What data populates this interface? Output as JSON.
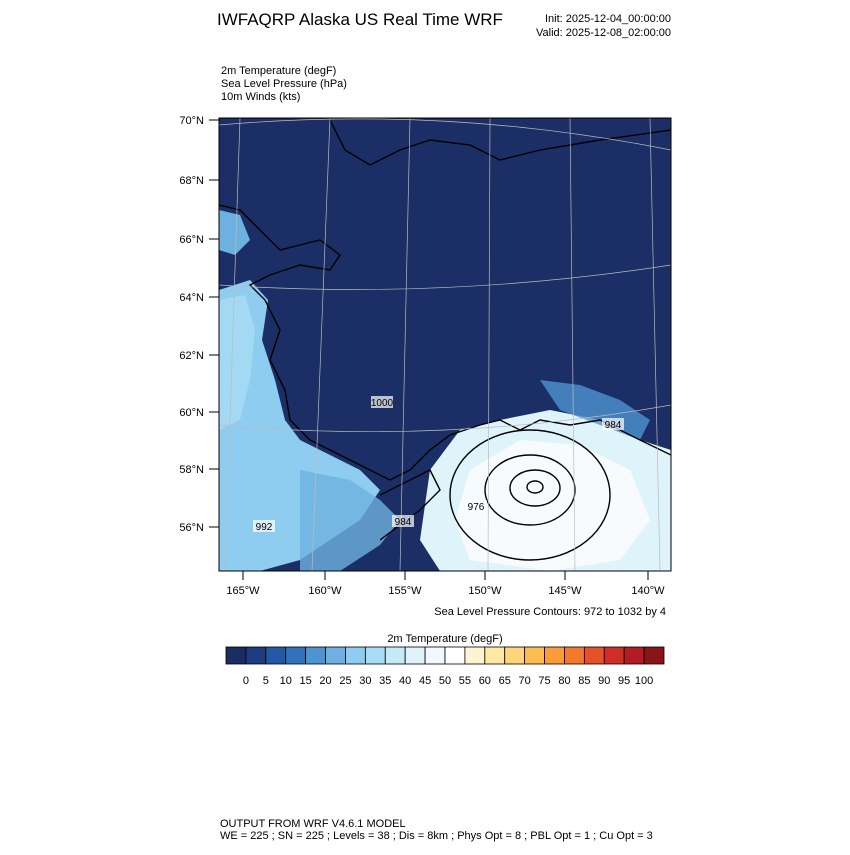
{
  "header": {
    "title": "IWFAQRP Alaska US Real Time WRF",
    "init": "Init: 2025-12-04_00:00:00",
    "valid": "Valid: 2025-12-08_02:00:00"
  },
  "fields": [
    "2m Temperature   (degF)",
    "Sea Level Pressure   (hPa)",
    "10m Winds   (kts)"
  ],
  "map": {
    "lat_labels": [
      "70°N",
      "68°N",
      "66°N",
      "64°N",
      "62°N",
      "60°N",
      "58°N",
      "56°N"
    ],
    "lon_labels": [
      "165°W",
      "160°W",
      "155°W",
      "150°W",
      "145°W",
      "140°W"
    ],
    "contour_labels": [
      "976",
      "984",
      "992",
      "1000",
      "984"
    ],
    "contour_note": "Sea Level Pressure Contours: 972 to 1032 by 4"
  },
  "colorbar": {
    "title": "2m Temperature  (degF)",
    "labels": [
      "0",
      "5",
      "10",
      "15",
      "20",
      "25",
      "30",
      "35",
      "40",
      "45",
      "50",
      "55",
      "60",
      "65",
      "70",
      "75",
      "80",
      "85",
      "90",
      "95",
      "100"
    ],
    "colors": [
      "#1a2d62",
      "#1f3c80",
      "#2457a6",
      "#3272bd",
      "#4d94d0",
      "#6eb1e0",
      "#8ecdf0",
      "#a9dcf4",
      "#c6e9f8",
      "#dff3fb",
      "#f0f9fd",
      "#ffffff",
      "#fff4d2",
      "#ffe8a3",
      "#fcd679",
      "#fbbd52",
      "#f89d38",
      "#f27a2c",
      "#e3522a",
      "#cd2f27",
      "#b21d23",
      "#8a1519"
    ]
  },
  "footer": {
    "line1": "OUTPUT FROM WRF V4.6.1 MODEL",
    "line2": "WE = 225 ; SN = 225 ; Levels = 38 ; Dis = 8km ; Phys Opt = 8 ; PBL Opt = 1 ; Cu Opt = 3"
  }
}
